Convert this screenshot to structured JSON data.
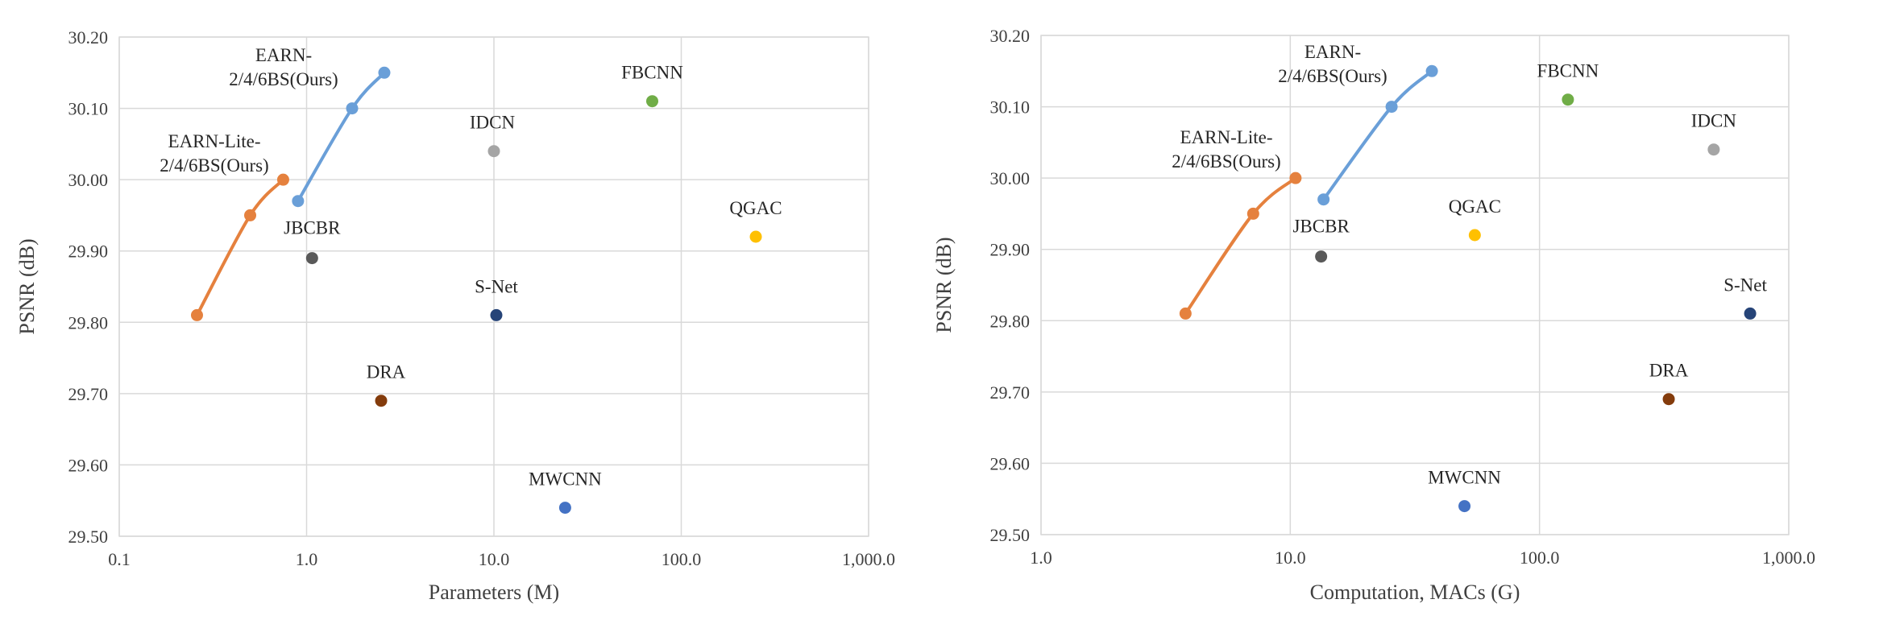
{
  "chart_data": [
    {
      "type": "scatter",
      "title": "",
      "xlabel": "Parameters (M)",
      "ylabel": "PSNR (dB)",
      "xscale": "log",
      "xlim": [
        0.1,
        1000
      ],
      "ylim": [
        29.5,
        30.2
      ],
      "xticks": [
        "0.1",
        "1.0",
        "10.0",
        "100.0",
        "1,000.0"
      ],
      "yticks": [
        "29.50",
        "29.60",
        "29.70",
        "29.80",
        "29.90",
        "30.00",
        "30.10",
        "30.20"
      ],
      "grid": true,
      "series": [
        {
          "label_lines": [
            "EARN-",
            "2/4/6BS(Ours)"
          ],
          "color": "#6A9FD8",
          "line": true,
          "points": [
            {
              "x": 0.9,
              "y": 29.97
            },
            {
              "x": 1.75,
              "y": 30.1
            },
            {
              "x": 2.6,
              "y": 30.15
            }
          ]
        },
        {
          "label_lines": [
            "EARN-Lite-",
            "2/4/6BS(Ours)"
          ],
          "color": "#E5813E",
          "line": true,
          "points": [
            {
              "x": 0.26,
              "y": 29.81
            },
            {
              "x": 0.5,
              "y": 29.95
            },
            {
              "x": 0.75,
              "y": 30.0
            }
          ]
        }
      ],
      "points": [
        {
          "label": "FBCNN",
          "x": 70,
          "y": 30.11,
          "color": "#70AD47"
        },
        {
          "label": "IDCN",
          "x": 10,
          "y": 30.04,
          "color": "#A5A5A5"
        },
        {
          "label": "QGAC",
          "x": 250,
          "y": 29.92,
          "color": "#FFC000"
        },
        {
          "label": "JBCBR",
          "x": 1.07,
          "y": 29.89,
          "color": "#595959"
        },
        {
          "label": "S-Net",
          "x": 10.3,
          "y": 29.81,
          "color": "#264478"
        },
        {
          "label": "DRA",
          "x": 2.5,
          "y": 29.69,
          "color": "#843C0C"
        },
        {
          "label": "MWCNN",
          "x": 24,
          "y": 29.54,
          "color": "#4472C4"
        }
      ]
    },
    {
      "type": "scatter",
      "title": "",
      "xlabel": "Computation, MACs (G)",
      "ylabel": "PSNR (dB)",
      "xscale": "log",
      "xlim": [
        1,
        1000
      ],
      "ylim": [
        29.5,
        30.2
      ],
      "xticks": [
        "1.0",
        "10.0",
        "100.0",
        "1,000.0"
      ],
      "yticks": [
        "29.50",
        "29.60",
        "29.70",
        "29.80",
        "29.90",
        "30.00",
        "30.10",
        "30.20"
      ],
      "grid": true,
      "series": [
        {
          "label_lines": [
            "EARN-",
            "2/4/6BS(Ours)"
          ],
          "color": "#6A9FD8",
          "line": true,
          "points": [
            {
              "x": 13.6,
              "y": 29.97
            },
            {
              "x": 25.5,
              "y": 30.1
            },
            {
              "x": 37,
              "y": 30.15
            }
          ]
        },
        {
          "label_lines": [
            "EARN-Lite-",
            "2/4/6BS(Ours)"
          ],
          "color": "#E5813E",
          "line": true,
          "points": [
            {
              "x": 3.8,
              "y": 29.81
            },
            {
              "x": 7.1,
              "y": 29.95
            },
            {
              "x": 10.5,
              "y": 30.0
            }
          ]
        }
      ],
      "points": [
        {
          "label": "FBCNN",
          "x": 130,
          "y": 30.11,
          "color": "#70AD47"
        },
        {
          "label": "IDCN",
          "x": 500,
          "y": 30.04,
          "color": "#A5A5A5"
        },
        {
          "label": "QGAC",
          "x": 55,
          "y": 29.92,
          "color": "#FFC000"
        },
        {
          "label": "JBCBR",
          "x": 13.3,
          "y": 29.89,
          "color": "#595959"
        },
        {
          "label": "S-Net",
          "x": 700,
          "y": 29.81,
          "color": "#264478"
        },
        {
          "label": "DRA",
          "x": 330,
          "y": 29.69,
          "color": "#843C0C"
        },
        {
          "label": "MWCNN",
          "x": 50,
          "y": 29.54,
          "color": "#4472C4"
        }
      ]
    }
  ]
}
